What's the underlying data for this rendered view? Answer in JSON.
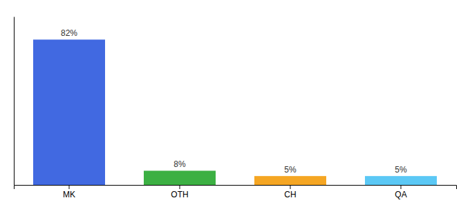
{
  "chart_data": {
    "type": "bar",
    "categories": [
      "MK",
      "OTH",
      "CH",
      "QA"
    ],
    "values": [
      82,
      8,
      5,
      5
    ],
    "value_labels": [
      "82%",
      "8%",
      "5%",
      "5%"
    ],
    "colors": [
      "#4169e1",
      "#3cb043",
      "#f5a623",
      "#5bc8f5"
    ],
    "ylim": [
      0,
      95
    ],
    "data_labels": true,
    "grid": false,
    "tick_labels": "x"
  }
}
